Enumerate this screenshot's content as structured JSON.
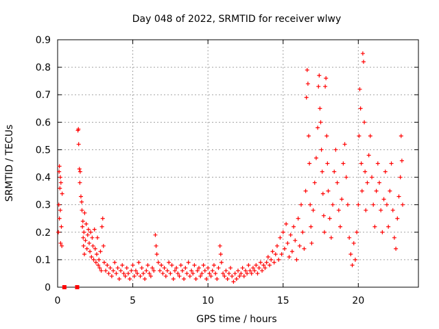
{
  "chart_data": {
    "type": "scatter",
    "title": "Day 048 of 2022, SRMTID for receiver wlwy",
    "xlabel": "GPS time / hours",
    "ylabel": "SRMTID / TECUs",
    "xlim": [
      0,
      24
    ],
    "ylim": [
      0,
      0.9
    ],
    "xticks": [
      0,
      5,
      10,
      15,
      20
    ],
    "xtick_labels": [
      "0",
      "5",
      "10",
      "15",
      "20"
    ],
    "yticks": [
      0,
      0.1,
      0.2,
      0.3,
      0.4,
      0.5,
      0.6,
      0.7,
      0.8,
      0.9
    ],
    "ytick_labels": [
      "0",
      "0.1",
      "0.2",
      "0.3",
      "0.4",
      "0.5",
      "0.6",
      "0.7",
      "0.8",
      "0.9"
    ],
    "grid": true,
    "marker": "+",
    "color": "#ff0000",
    "series": [
      {
        "name": "SRMTID",
        "points": [
          [
            0.05,
            0.2
          ],
          [
            0.08,
            0.3
          ],
          [
            0.1,
            0.42
          ],
          [
            0.12,
            0.44
          ],
          [
            0.15,
            0.36
          ],
          [
            0.18,
            0.28
          ],
          [
            0.2,
            0.16
          ],
          [
            0.22,
            0.38
          ],
          [
            0.25,
            0.22
          ],
          [
            0.28,
            0.15
          ],
          [
            0.3,
            0.34
          ],
          [
            0.12,
            0.25
          ],
          [
            0.18,
            0.4
          ],
          [
            1.35,
            0.57
          ],
          [
            1.38,
            0.575
          ],
          [
            1.4,
            0.52
          ],
          [
            1.45,
            0.43
          ],
          [
            1.48,
            0.38
          ],
          [
            1.5,
            0.42
          ],
          [
            1.55,
            0.33
          ],
          [
            1.6,
            0.31
          ],
          [
            1.62,
            0.28
          ],
          [
            1.65,
            0.22
          ],
          [
            1.68,
            0.24
          ],
          [
            1.7,
            0.18
          ],
          [
            1.72,
            0.15
          ],
          [
            1.75,
            0.2
          ],
          [
            1.78,
            0.12
          ],
          [
            1.8,
            0.27
          ],
          [
            1.85,
            0.17
          ],
          [
            1.9,
            0.23
          ],
          [
            1.95,
            0.14
          ],
          [
            2.0,
            0.19
          ],
          [
            2.05,
            0.21
          ],
          [
            2.1,
            0.16
          ],
          [
            2.15,
            0.13
          ],
          [
            2.2,
            0.2
          ],
          [
            2.25,
            0.11
          ],
          [
            2.3,
            0.18
          ],
          [
            2.35,
            0.15
          ],
          [
            2.4,
            0.1
          ],
          [
            2.45,
            0.21
          ],
          [
            2.5,
            0.14
          ],
          [
            2.55,
            0.09
          ],
          [
            2.6,
            0.12
          ],
          [
            2.65,
            0.18
          ],
          [
            2.7,
            0.08
          ],
          [
            2.75,
            0.1
          ],
          [
            2.8,
            0.07
          ],
          [
            2.85,
            0.13
          ],
          [
            2.9,
            0.06
          ],
          [
            2.95,
            0.22
          ],
          [
            3.0,
            0.25
          ],
          [
            3.05,
            0.15
          ],
          [
            3.1,
            0.09
          ],
          [
            3.2,
            0.06
          ],
          [
            3.3,
            0.08
          ],
          [
            3.4,
            0.05
          ],
          [
            3.5,
            0.07
          ],
          [
            3.6,
            0.04
          ],
          [
            3.7,
            0.06
          ],
          [
            3.8,
            0.09
          ],
          [
            3.9,
            0.05
          ],
          [
            4.0,
            0.07
          ],
          [
            4.1,
            0.03
          ],
          [
            4.2,
            0.06
          ],
          [
            4.3,
            0.08
          ],
          [
            4.4,
            0.05
          ],
          [
            4.5,
            0.04
          ],
          [
            4.6,
            0.07
          ],
          [
            4.7,
            0.05
          ],
          [
            4.8,
            0.03
          ],
          [
            4.9,
            0.06
          ],
          [
            5.0,
            0.08
          ],
          [
            5.1,
            0.04
          ],
          [
            5.2,
            0.06
          ],
          [
            5.3,
            0.05
          ],
          [
            5.4,
            0.09
          ],
          [
            5.5,
            0.04
          ],
          [
            5.6,
            0.07
          ],
          [
            5.7,
            0.05
          ],
          [
            5.8,
            0.03
          ],
          [
            5.9,
            0.06
          ],
          [
            6.0,
            0.08
          ],
          [
            6.1,
            0.05
          ],
          [
            6.2,
            0.04
          ],
          [
            6.3,
            0.07
          ],
          [
            6.4,
            0.06
          ],
          [
            6.5,
            0.19
          ],
          [
            6.55,
            0.15
          ],
          [
            6.6,
            0.12
          ],
          [
            6.7,
            0.09
          ],
          [
            6.8,
            0.06
          ],
          [
            6.9,
            0.08
          ],
          [
            7.0,
            0.05
          ],
          [
            7.1,
            0.07
          ],
          [
            7.2,
            0.04
          ],
          [
            7.3,
            0.06
          ],
          [
            7.4,
            0.09
          ],
          [
            7.5,
            0.05
          ],
          [
            7.6,
            0.08
          ],
          [
            7.7,
            0.03
          ],
          [
            7.8,
            0.06
          ],
          [
            7.9,
            0.07
          ],
          [
            8.0,
            0.05
          ],
          [
            8.1,
            0.04
          ],
          [
            8.2,
            0.08
          ],
          [
            8.3,
            0.06
          ],
          [
            8.4,
            0.03
          ],
          [
            8.5,
            0.07
          ],
          [
            8.6,
            0.05
          ],
          [
            8.7,
            0.09
          ],
          [
            8.8,
            0.04
          ],
          [
            8.9,
            0.06
          ],
          [
            9.0,
            0.05
          ],
          [
            9.1,
            0.08
          ],
          [
            9.2,
            0.03
          ],
          [
            9.3,
            0.06
          ],
          [
            9.4,
            0.07
          ],
          [
            9.5,
            0.04
          ],
          [
            9.6,
            0.05
          ],
          [
            9.7,
            0.08
          ],
          [
            9.8,
            0.06
          ],
          [
            9.9,
            0.03
          ],
          [
            10.0,
            0.07
          ],
          [
            10.1,
            0.05
          ],
          [
            10.2,
            0.04
          ],
          [
            10.3,
            0.06
          ],
          [
            10.4,
            0.08
          ],
          [
            10.5,
            0.05
          ],
          [
            10.6,
            0.03
          ],
          [
            10.7,
            0.07
          ],
          [
            10.8,
            0.15
          ],
          [
            10.85,
            0.12
          ],
          [
            10.9,
            0.09
          ],
          [
            11.0,
            0.05
          ],
          [
            11.1,
            0.04
          ],
          [
            11.2,
            0.06
          ],
          [
            11.3,
            0.03
          ],
          [
            11.4,
            0.05
          ],
          [
            11.5,
            0.07
          ],
          [
            11.6,
            0.04
          ],
          [
            11.7,
            0.02
          ],
          [
            11.8,
            0.05
          ],
          [
            11.9,
            0.03
          ],
          [
            12.0,
            0.06
          ],
          [
            12.1,
            0.04
          ],
          [
            12.2,
            0.05
          ],
          [
            12.3,
            0.07
          ],
          [
            12.4,
            0.04
          ],
          [
            12.5,
            0.06
          ],
          [
            12.6,
            0.05
          ],
          [
            12.7,
            0.08
          ],
          [
            12.8,
            0.06
          ],
          [
            12.9,
            0.05
          ],
          [
            13.0,
            0.07
          ],
          [
            13.1,
            0.06
          ],
          [
            13.2,
            0.08
          ],
          [
            13.3,
            0.05
          ],
          [
            13.4,
            0.07
          ],
          [
            13.5,
            0.09
          ],
          [
            13.6,
            0.06
          ],
          [
            13.7,
            0.08
          ],
          [
            13.8,
            0.07
          ],
          [
            13.9,
            0.09
          ],
          [
            14.0,
            0.11
          ],
          [
            14.1,
            0.08
          ],
          [
            14.2,
            0.1
          ],
          [
            14.3,
            0.13
          ],
          [
            14.4,
            0.09
          ],
          [
            14.5,
            0.12
          ],
          [
            14.6,
            0.15
          ],
          [
            14.7,
            0.1
          ],
          [
            14.8,
            0.18
          ],
          [
            14.9,
            0.12
          ],
          [
            15.0,
            0.2
          ],
          [
            15.1,
            0.14
          ],
          [
            15.2,
            0.23
          ],
          [
            15.3,
            0.16
          ],
          [
            15.4,
            0.11
          ],
          [
            15.5,
            0.19
          ],
          [
            15.6,
            0.13
          ],
          [
            15.7,
            0.22
          ],
          [
            15.8,
            0.17
          ],
          [
            15.9,
            0.1
          ],
          [
            16.0,
            0.25
          ],
          [
            16.1,
            0.15
          ],
          [
            16.2,
            0.3
          ],
          [
            16.3,
            0.2
          ],
          [
            16.4,
            0.14
          ],
          [
            16.5,
            0.35
          ],
          [
            16.55,
            0.69
          ],
          [
            16.6,
            0.79
          ],
          [
            16.65,
            0.74
          ],
          [
            16.7,
            0.55
          ],
          [
            16.75,
            0.45
          ],
          [
            16.8,
            0.3
          ],
          [
            16.85,
            0.22
          ],
          [
            16.9,
            0.16
          ],
          [
            17.0,
            0.28
          ],
          [
            17.1,
            0.38
          ],
          [
            17.2,
            0.47
          ],
          [
            17.3,
            0.58
          ],
          [
            17.35,
            0.73
          ],
          [
            17.4,
            0.77
          ],
          [
            17.45,
            0.65
          ],
          [
            17.5,
            0.6
          ],
          [
            17.55,
            0.5
          ],
          [
            17.6,
            0.42
          ],
          [
            17.65,
            0.34
          ],
          [
            17.7,
            0.26
          ],
          [
            17.75,
            0.2
          ],
          [
            17.8,
            0.73
          ],
          [
            17.85,
            0.76
          ],
          [
            17.9,
            0.55
          ],
          [
            17.95,
            0.45
          ],
          [
            18.0,
            0.35
          ],
          [
            18.1,
            0.25
          ],
          [
            18.2,
            0.18
          ],
          [
            18.3,
            0.3
          ],
          [
            18.4,
            0.42
          ],
          [
            18.5,
            0.5
          ],
          [
            18.6,
            0.38
          ],
          [
            18.7,
            0.28
          ],
          [
            18.8,
            0.22
          ],
          [
            18.9,
            0.32
          ],
          [
            19.0,
            0.45
          ],
          [
            19.1,
            0.52
          ],
          [
            19.2,
            0.4
          ],
          [
            19.3,
            0.3
          ],
          [
            19.4,
            0.18
          ],
          [
            19.5,
            0.12
          ],
          [
            19.6,
            0.08
          ],
          [
            19.7,
            0.16
          ],
          [
            19.8,
            0.1
          ],
          [
            19.9,
            0.2
          ],
          [
            20.0,
            0.3
          ],
          [
            20.05,
            0.55
          ],
          [
            20.1,
            0.72
          ],
          [
            20.15,
            0.65
          ],
          [
            20.2,
            0.45
          ],
          [
            20.25,
            0.35
          ],
          [
            20.3,
            0.85
          ],
          [
            20.35,
            0.82
          ],
          [
            20.4,
            0.6
          ],
          [
            20.45,
            0.42
          ],
          [
            20.5,
            0.28
          ],
          [
            20.6,
            0.38
          ],
          [
            20.7,
            0.48
          ],
          [
            20.8,
            0.55
          ],
          [
            20.9,
            0.4
          ],
          [
            21.0,
            0.3
          ],
          [
            21.1,
            0.22
          ],
          [
            21.2,
            0.35
          ],
          [
            21.3,
            0.45
          ],
          [
            21.4,
            0.38
          ],
          [
            21.5,
            0.28
          ],
          [
            21.6,
            0.2
          ],
          [
            21.7,
            0.32
          ],
          [
            21.8,
            0.42
          ],
          [
            21.9,
            0.3
          ],
          [
            22.0,
            0.22
          ],
          [
            22.1,
            0.35
          ],
          [
            22.2,
            0.45
          ],
          [
            22.3,
            0.28
          ],
          [
            22.4,
            0.18
          ],
          [
            22.5,
            0.14
          ],
          [
            22.6,
            0.25
          ],
          [
            22.7,
            0.33
          ],
          [
            22.8,
            0.4
          ],
          [
            22.85,
            0.55
          ],
          [
            22.9,
            0.46
          ],
          [
            22.95,
            0.3
          ]
        ]
      }
    ],
    "zero_markers": [
      0.45,
      1.3
    ]
  }
}
